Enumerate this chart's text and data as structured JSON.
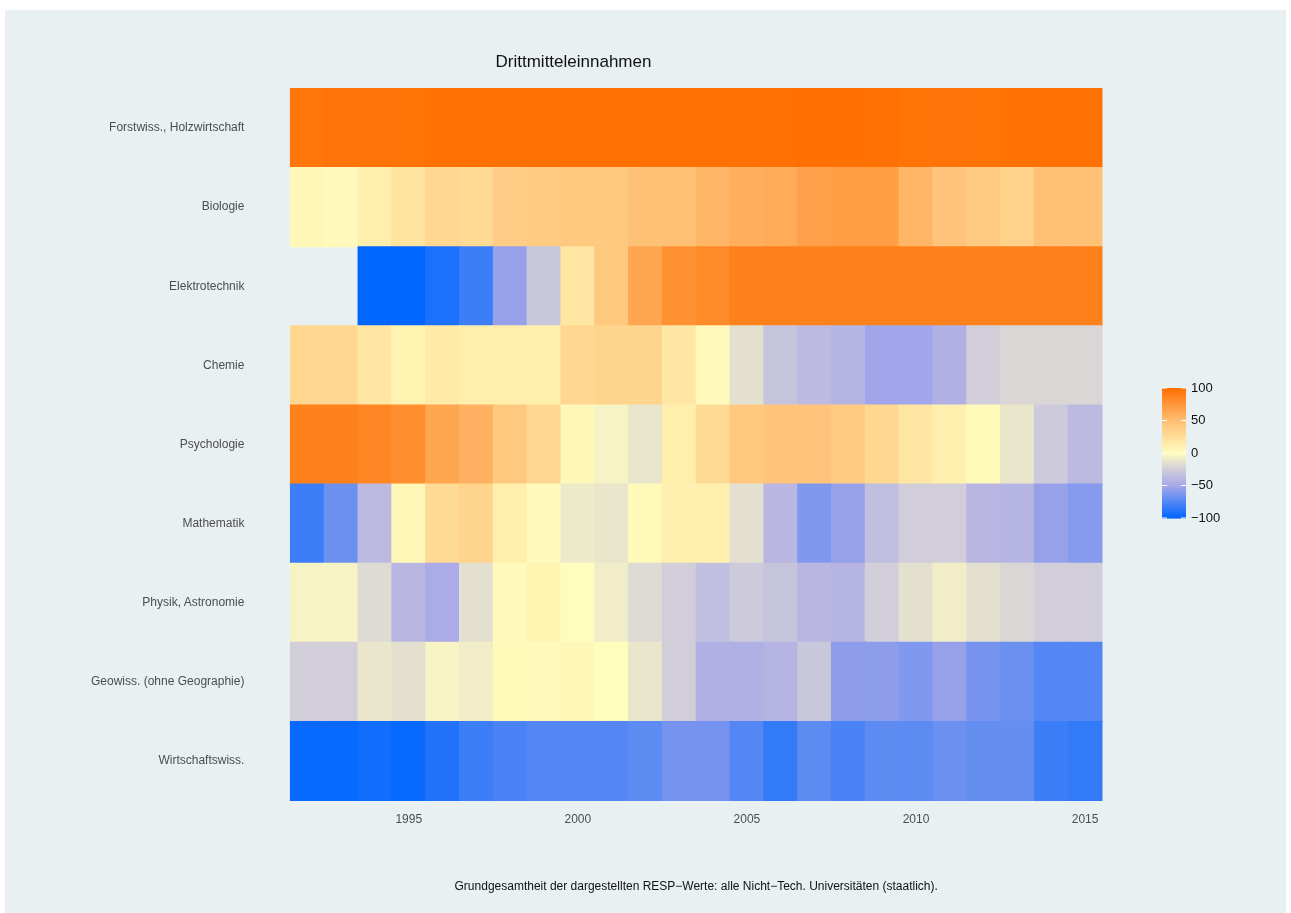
{
  "chart_data": {
    "type": "heatmap",
    "title": "Drittmitteleinnahmen",
    "categories": [
      null,
      null,
      null,
      "1995",
      null,
      null,
      null,
      null,
      "2000",
      null,
      null,
      null,
      null,
      "2005",
      null,
      null,
      null,
      null,
      "2010",
      null,
      null,
      null,
      null,
      "2015"
    ],
    "y_categories": [
      "Forstwiss., Holzwirtschaft",
      "Biologie",
      "Elektrotechnik",
      "Chemie",
      "Psychologie",
      "Mathematik",
      "Physik, Astronomie",
      "Geowiss. (ohne Geographie)",
      "Wirtschaftswiss."
    ],
    "cells": [
      [
        95,
        96,
        96,
        97,
        98,
        98,
        98,
        98,
        98,
        98,
        98,
        98,
        98,
        98,
        98,
        99,
        99,
        98,
        97,
        96,
        97,
        98,
        98,
        98
      ],
      [
        5,
        2,
        12,
        20,
        30,
        28,
        38,
        40,
        42,
        42,
        48,
        48,
        55,
        60,
        62,
        68,
        70,
        70,
        55,
        45,
        40,
        35,
        48,
        48
      ],
      [
        null,
        null,
        -100,
        -100,
        -92,
        -82,
        -55,
        -30,
        18,
        42,
        65,
        78,
        82,
        88,
        88,
        88,
        88,
        88,
        88,
        88,
        88,
        88,
        88,
        88
      ],
      [
        30,
        30,
        18,
        8,
        15,
        12,
        12,
        12,
        30,
        32,
        32,
        18,
        2,
        -15,
        -32,
        -38,
        -42,
        -52,
        -52,
        -45,
        -25,
        -20,
        -20,
        -20
      ],
      [
        88,
        88,
        85,
        80,
        65,
        58,
        42,
        30,
        5,
        -5,
        -12,
        12,
        28,
        42,
        45,
        45,
        40,
        30,
        18,
        10,
        3,
        -12,
        -28,
        -38
      ],
      [
        -82,
        -68,
        -38,
        5,
        28,
        32,
        12,
        2,
        -10,
        -12,
        3,
        10,
        10,
        -15,
        -40,
        -62,
        -55,
        -35,
        -25,
        -25,
        -40,
        -42,
        -55,
        -60
      ],
      [
        -5,
        -5,
        -18,
        -40,
        -48,
        -15,
        2,
        8,
        0,
        -8,
        -18,
        -25,
        -35,
        -28,
        -32,
        -40,
        -42,
        -25,
        -15,
        -8,
        -15,
        -20,
        -25,
        -25
      ],
      [
        -25,
        -25,
        -12,
        -15,
        -5,
        -8,
        3,
        2,
        5,
        0,
        -12,
        -25,
        -45,
        -45,
        -42,
        -30,
        -58,
        -58,
        -62,
        -55,
        -65,
        -68,
        -75,
        -75
      ],
      [
        -98,
        -98,
        -95,
        -98,
        -90,
        -82,
        -78,
        -75,
        -75,
        -75,
        -72,
        -65,
        -65,
        -75,
        -85,
        -72,
        -78,
        -72,
        -72,
        -68,
        -70,
        -70,
        -82,
        -85
      ]
    ],
    "clim": [
      -100,
      100
    ],
    "cticks": [
      -100,
      -50,
      0,
      50,
      100
    ],
    "annotations": [
      "Grundgesamtheit der dargestellten RESP−Werte: alle Nicht−Tech. Universitäten (staatlich)."
    ]
  }
}
